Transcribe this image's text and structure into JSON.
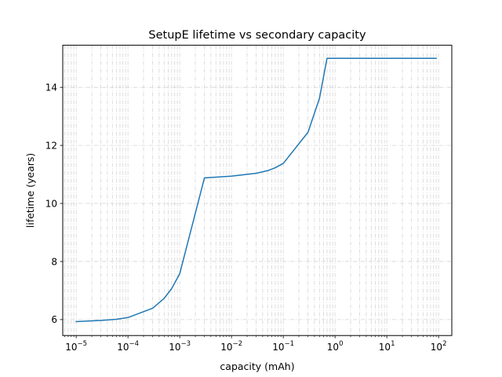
{
  "chart_data": {
    "type": "line",
    "title": "SetupE lifetime vs secondary capacity",
    "xlabel": "capacity (mAh)",
    "ylabel": "lifetime (years)",
    "xscale": "log",
    "xlim": [
      5.5e-06,
      180
    ],
    "ylim": [
      5.45,
      15.45
    ],
    "grid": {
      "major": true,
      "minor": true,
      "style": "dash-dot",
      "color": "#d3d3d3"
    },
    "xticks": [
      {
        "value": 1e-05,
        "base": "10",
        "exp": "−5"
      },
      {
        "value": 0.0001,
        "base": "10",
        "exp": "−4"
      },
      {
        "value": 0.001,
        "base": "10",
        "exp": "−3"
      },
      {
        "value": 0.01,
        "base": "10",
        "exp": "−2"
      },
      {
        "value": 0.1,
        "base": "10",
        "exp": "−1"
      },
      {
        "value": 1,
        "base": "10",
        "exp": "0"
      },
      {
        "value": 10,
        "base": "10",
        "exp": "1"
      },
      {
        "value": 100,
        "base": "10",
        "exp": "2"
      }
    ],
    "yticks": [
      {
        "value": 6,
        "label": "6"
      },
      {
        "value": 8,
        "label": "8"
      },
      {
        "value": 10,
        "label": "10"
      },
      {
        "value": 12,
        "label": "12"
      },
      {
        "value": 14,
        "label": "14"
      }
    ],
    "series": [
      {
        "color": "#1f77b4",
        "x": [
          1e-05,
          3e-05,
          6e-05,
          0.0001,
          0.0003,
          0.0005,
          0.0007,
          0.001,
          0.003,
          0.01,
          0.03,
          0.05,
          0.07,
          0.1,
          0.3,
          0.5,
          0.7,
          1,
          3,
          10,
          30,
          90
        ],
        "y": [
          5.93,
          5.97,
          6.01,
          6.07,
          6.39,
          6.73,
          7.07,
          7.58,
          10.88,
          10.94,
          11.04,
          11.13,
          11.23,
          11.38,
          12.45,
          13.62,
          15.0,
          15.0,
          15.0,
          15.0,
          15.0,
          15.0
        ]
      }
    ]
  }
}
